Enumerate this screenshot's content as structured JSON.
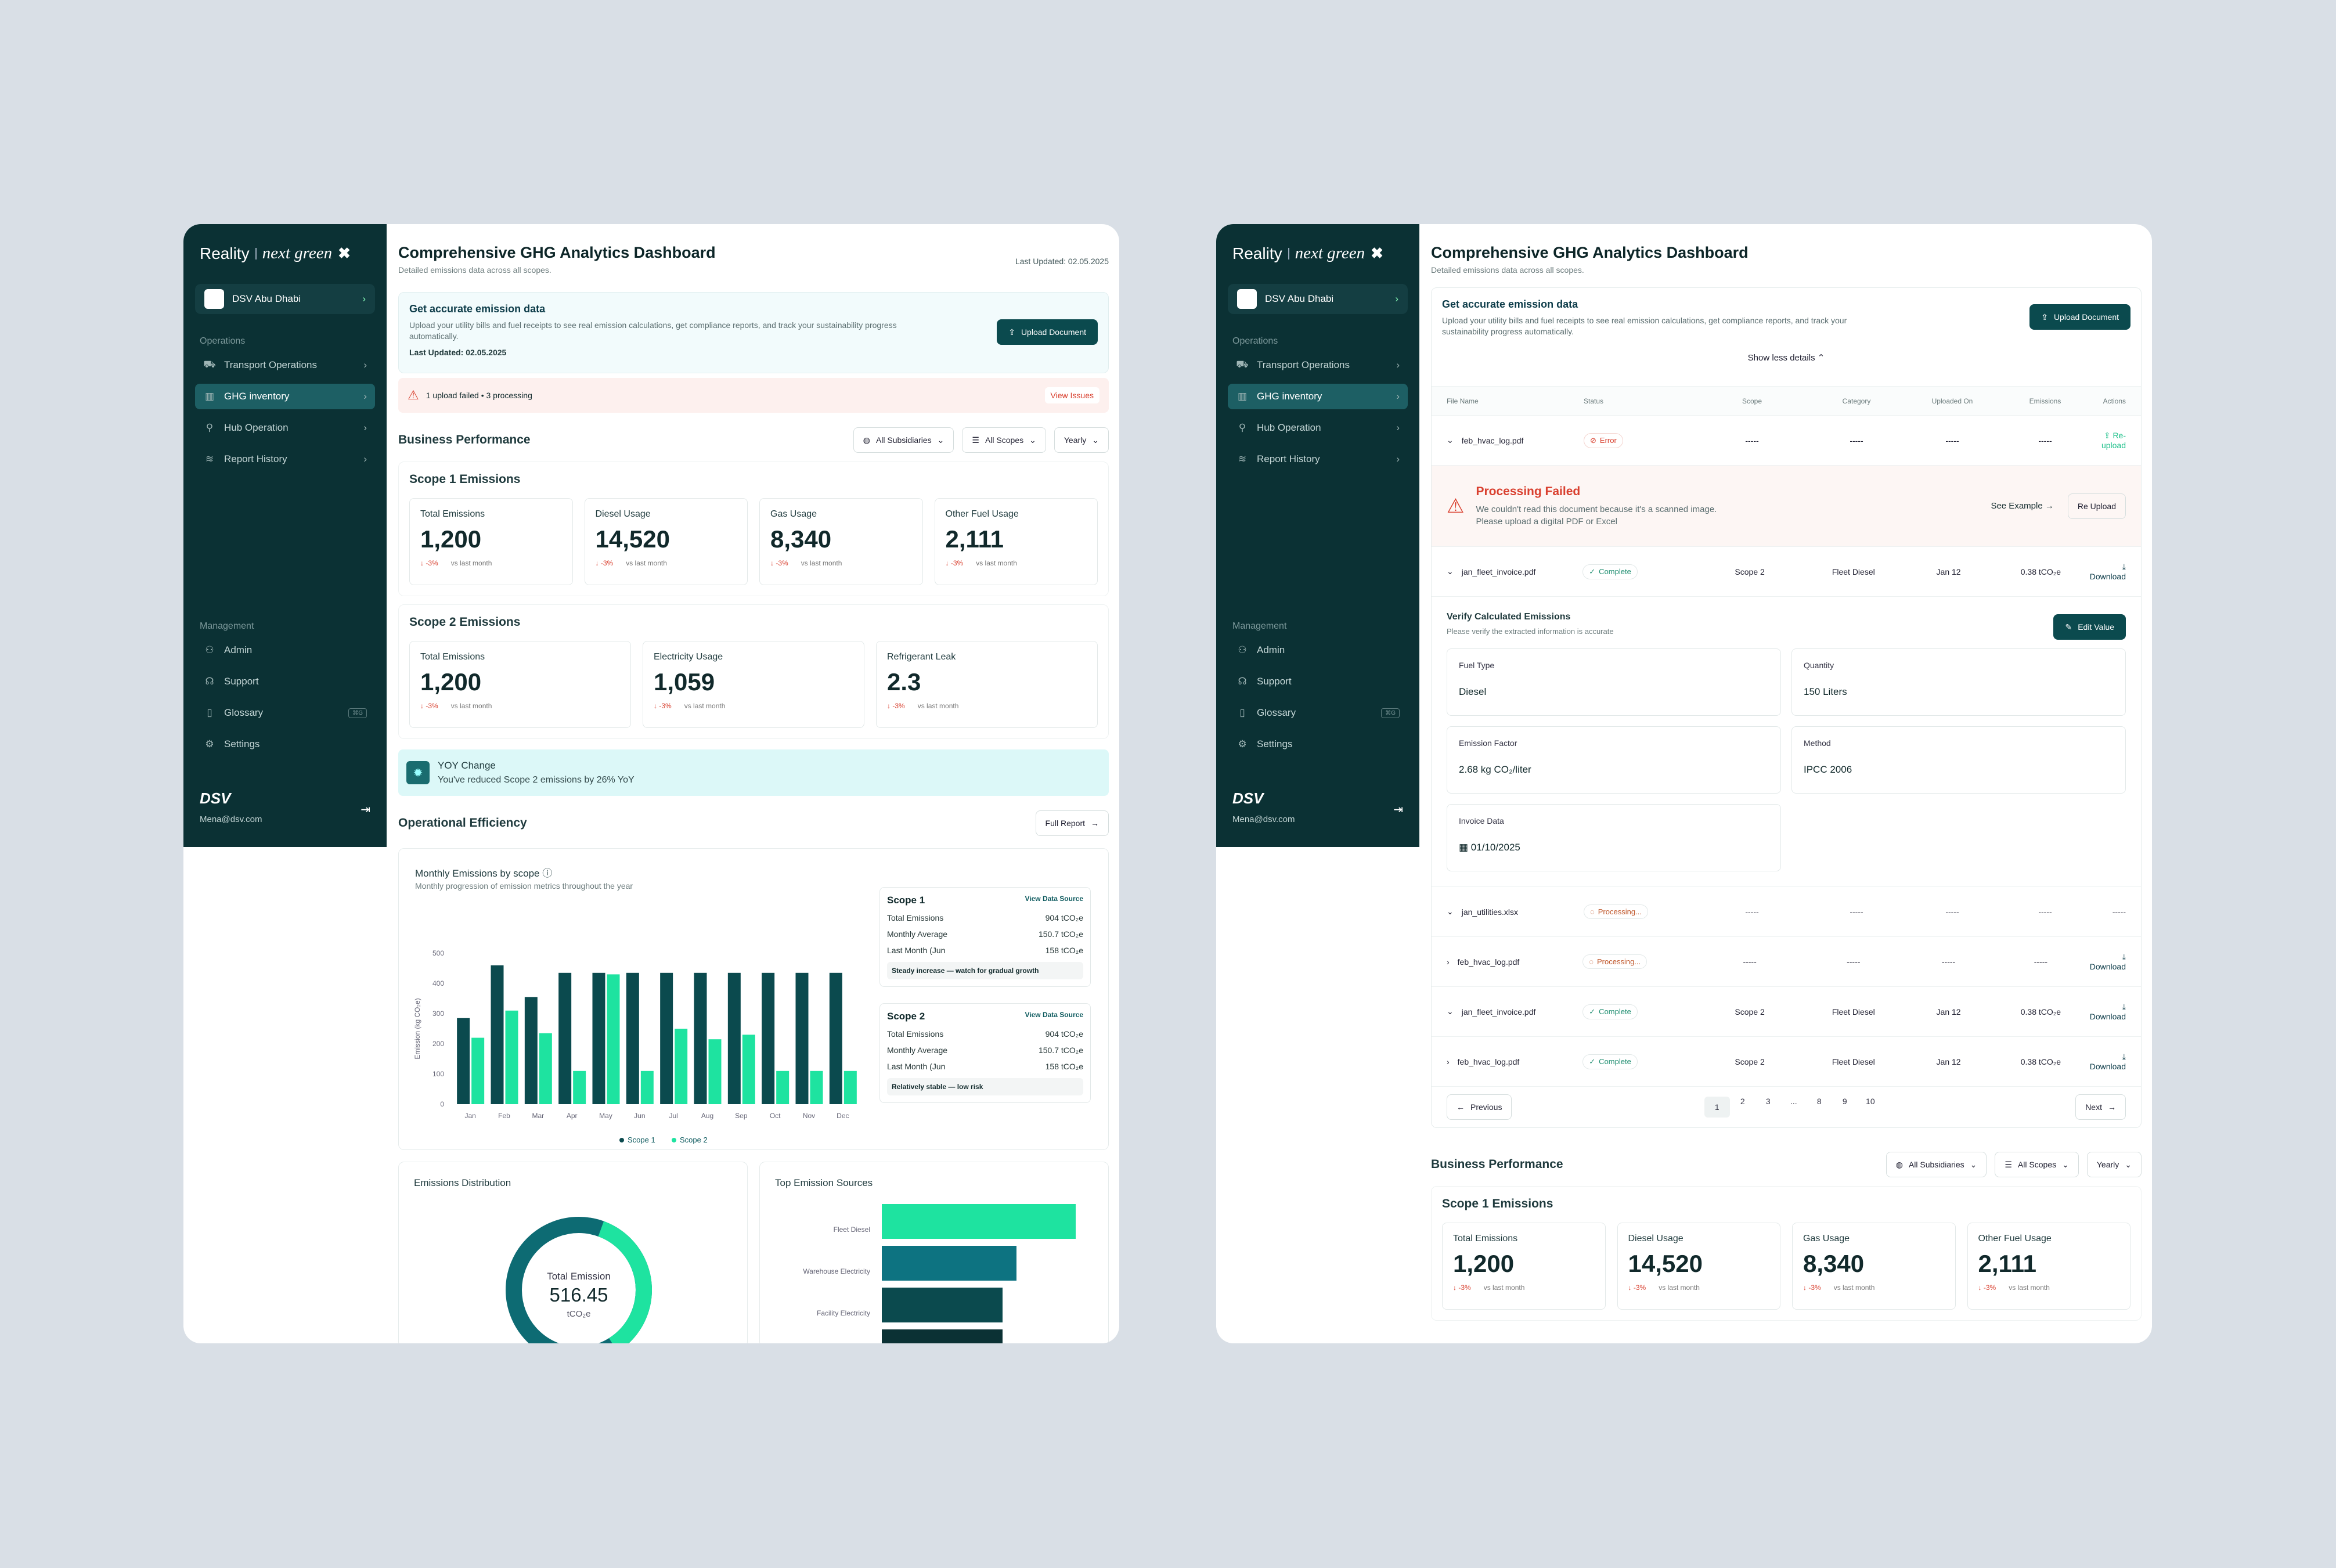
{
  "brand": {
    "reality": "Reality",
    "next": "next green",
    "mark": "✖"
  },
  "org": "DSV Abu Dhabi",
  "nav": {
    "ops_label": "Operations",
    "items": [
      "Transport Operations",
      "GHG inventory",
      "Hub Operation",
      "Report History"
    ],
    "mgmt_label": "Management",
    "mgmt": [
      "Admin",
      "Support",
      "Glossary",
      "Settings"
    ],
    "kbd": "⌘G"
  },
  "footer": {
    "logo": "DSV",
    "email": "Mena@dsv.com"
  },
  "header": {
    "title": "Comprehensive GHG Analytics Dashboard",
    "subtitle": "Detailed emissions data across all scopes.",
    "updated": "Last Updated: 02.05.2025"
  },
  "banner": {
    "title": "Get accurate emission data",
    "text": "Upload your utility bills and fuel receipts to see real emission calculations, get compliance reports, and track your sustainability progress automatically.",
    "last": "Last Updated: 02.05.2025",
    "button": "Upload Document",
    "toggle": "Show less details"
  },
  "alert": {
    "text": "1 upload failed • 3 processing",
    "link": "View Issues"
  },
  "business": {
    "title": "Business Performance",
    "filters": [
      "All Subsidiaries",
      "All Scopes",
      "Yearly"
    ]
  },
  "scope1": {
    "title": "Scope 1 Emissions",
    "kpis": [
      {
        "label": "Total Emissions",
        "value": "1,200"
      },
      {
        "label": "Diesel Usage",
        "value": "14,520"
      },
      {
        "label": "Gas Usage",
        "value": "8,340"
      },
      {
        "label": "Other Fuel Usage",
        "value": "2,111"
      }
    ]
  },
  "scope2": {
    "title": "Scope 2 Emissions",
    "kpis": [
      {
        "label": "Total Emissions",
        "value": "1,200"
      },
      {
        "label": "Electricity Usage",
        "value": "1,059"
      },
      {
        "label": "Refrigerant Leak",
        "value": "2.3"
      }
    ]
  },
  "delta": {
    "pct": "-3%",
    "text": "vs last month"
  },
  "yoy": {
    "title": "YOY Change",
    "text": "You've reduced Scope 2 emissions by 26% YoY"
  },
  "ops": {
    "title": "Operational Efficiency",
    "button": "Full Report"
  },
  "monthly": {
    "title": "Monthly Emissions by scope",
    "subtitle": "Monthly progression of emission metrics throughout the year"
  },
  "chart_data": {
    "type": "bar",
    "title": "Monthly Emissions by scope",
    "ylabel": "Emission (kg CO₂e)",
    "ylim": [
      0,
      500
    ],
    "yticks": [
      0,
      100,
      200,
      300,
      400,
      500
    ],
    "categories": [
      "Jan",
      "Feb",
      "Mar",
      "Apr",
      "May",
      "Jun",
      "Jul",
      "Aug",
      "Sep",
      "Oct",
      "Nov",
      "Dec"
    ],
    "series": [
      {
        "name": "Scope 1",
        "color": "#0b4a4e",
        "values": [
          285,
          460,
          355,
          435,
          435,
          435,
          435,
          435,
          435,
          435,
          435,
          435
        ]
      },
      {
        "name": "Scope 2",
        "color": "#1ee3a0",
        "values": [
          220,
          310,
          235,
          110,
          430,
          110,
          250,
          215,
          230,
          110,
          110,
          110
        ]
      }
    ],
    "legend": "bottom"
  },
  "panels": [
    {
      "title": "Scope 1",
      "link": "View Data Source",
      "rows": [
        [
          "Total Emissions",
          "904 tCO₂e"
        ],
        [
          "Monthly Average",
          "150.7 tCO₂e"
        ],
        [
          "Last Month (Jun",
          "158 tCO₂e"
        ]
      ],
      "note": "Steady increase — watch for gradual growth"
    },
    {
      "title": "Scope 2",
      "link": "View Data Source",
      "rows": [
        [
          "Total Emissions",
          "904 tCO₂e"
        ],
        [
          "Monthly Average",
          "150.7 tCO₂e"
        ],
        [
          "Last Month (Jun",
          "158 tCO₂e"
        ]
      ],
      "note": "Relatively stable — low risk"
    }
  ],
  "distribution": {
    "title": "Emissions Distribution",
    "center_label": "Total Emission",
    "center_value": "516.45",
    "unit": "tCO₂e"
  },
  "sources": {
    "title": "Top Emission Sources",
    "labels": [
      "Fleet Diesel",
      "Warehouse Electricity",
      "Facility Electricity"
    ]
  },
  "table": {
    "headers": [
      "File Name",
      "Status",
      "Scope",
      "Category",
      "Uploaded On",
      "Emissions",
      "Actions"
    ],
    "rows": [
      {
        "file": "feb_hvac_log.pdf",
        "status": "Error",
        "scope": "-----",
        "cat": "-----",
        "date": "-----",
        "em": "-----",
        "action": "Re-upload"
      },
      {
        "file": "jan_fleet_invoice.pdf",
        "status": "Complete",
        "scope": "Scope 2",
        "cat": "Fleet Diesel",
        "date": "Jan 12",
        "em": "0.38 tCO₂e",
        "action": "Download"
      },
      {
        "file": "jan_utilities.xlsx",
        "status": "Processing...",
        "scope": "-----",
        "cat": "-----",
        "date": "-----",
        "em": "-----",
        "action": "-----"
      },
      {
        "file": "feb_hvac_log.pdf",
        "status": "Processing...",
        "scope": "-----",
        "cat": "-----",
        "date": "-----",
        "em": "-----",
        "action": "Download"
      },
      {
        "file": "jan_fleet_invoice.pdf",
        "status": "Complete",
        "scope": "Scope 2",
        "cat": "Fleet Diesel",
        "date": "Jan 12",
        "em": "0.38 tCO₂e",
        "action": "Download"
      },
      {
        "file": "feb_hvac_log.pdf",
        "status": "Complete",
        "scope": "Scope 2",
        "cat": "Fleet Diesel",
        "date": "Jan 12",
        "em": "0.38 tCO₂e",
        "action": "Download"
      }
    ]
  },
  "fail": {
    "title": "Processing Failed",
    "text1": "We couldn't read this document because it's a scanned image.",
    "text2": "Please upload a digital PDF or Excel",
    "example": "See Example",
    "reupload": "Re Upload"
  },
  "verify": {
    "title": "Verify Calculated Emissions",
    "subtitle": "Please verify the extracted information is accurate",
    "button": "Edit Value",
    "fields": [
      {
        "label": "Fuel Type",
        "value": "Diesel"
      },
      {
        "label": "Quantity",
        "value": "150 Liters"
      },
      {
        "label": "Emission Factor",
        "value": "2.68 kg CO₂/liter"
      },
      {
        "label": "Method",
        "value": "IPCC 2006"
      },
      {
        "label": "Invoice Data",
        "value": "01/10/2025"
      }
    ]
  },
  "pager": {
    "prev": "Previous",
    "next": "Next",
    "pages": [
      "1",
      "2",
      "3",
      "...",
      "8",
      "9",
      "10"
    ]
  }
}
